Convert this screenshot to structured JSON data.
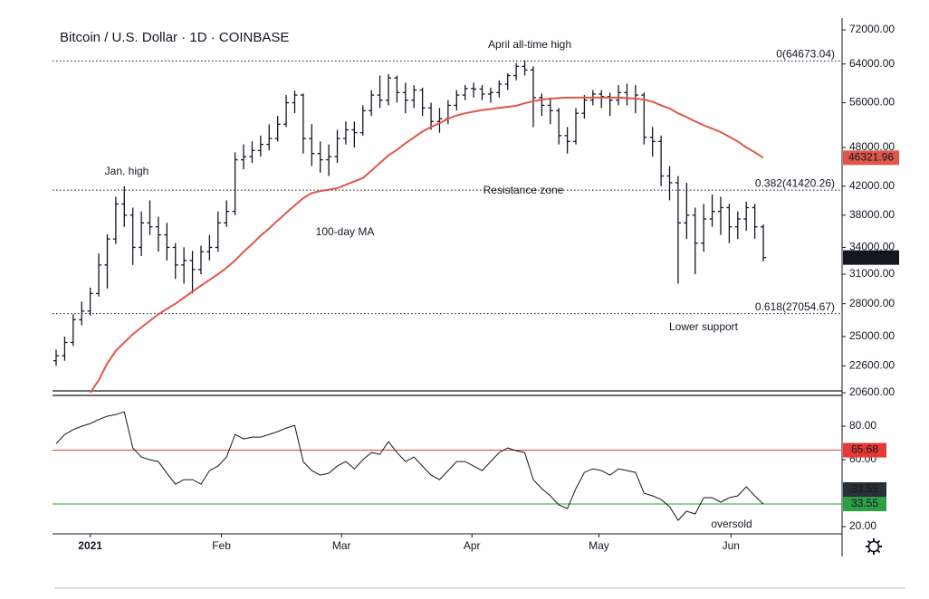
{
  "chart_data": [
    {
      "type": "ohlc",
      "title": "Bitcoin / U.S. Dollar · 1D · COINBASE",
      "color": "#131722",
      "open": [
        23000,
        23400,
        24500,
        26500,
        27300,
        29000,
        32000,
        35000,
        39500,
        38000,
        34000,
        37000,
        36500,
        35500,
        34000,
        32000,
        32500,
        31500,
        33500,
        34000,
        37000,
        38500,
        46000,
        46500,
        47500,
        48500,
        49500,
        52000,
        56000,
        57500,
        49500,
        47000,
        46000,
        46500,
        49500,
        51000,
        50500,
        54500,
        57500,
        56500,
        61000,
        58000,
        56500,
        58500,
        55000,
        52500,
        53000,
        55500,
        57500,
        58800,
        58700,
        57700,
        58000,
        59700,
        61500,
        63500,
        62700,
        57000,
        55500,
        54500,
        50000,
        49000,
        54000,
        56500,
        57700,
        57200,
        56500,
        58000,
        56800,
        57500,
        49700,
        49000,
        43500,
        42500,
        37000,
        38000,
        34500,
        37500,
        38500,
        39000,
        36500,
        37500,
        39000,
        36500
      ],
      "high": [
        23900,
        25000,
        27000,
        28200,
        29600,
        33300,
        35600,
        40500,
        42000,
        39000,
        38500,
        40000,
        37800,
        37000,
        34500,
        34000,
        33600,
        34200,
        35500,
        38500,
        40000,
        47200,
        48500,
        49000,
        50000,
        52000,
        53500,
        57500,
        58400,
        57800,
        52000,
        49000,
        48500,
        51000,
        52500,
        52500,
        55500,
        58500,
        61500,
        61800,
        61500,
        60000,
        59500,
        59000,
        56000,
        55000,
        56500,
        58500,
        59500,
        60000,
        59500,
        59000,
        60500,
        62000,
        64200,
        64800,
        63500,
        57800,
        57000,
        55000,
        51500,
        55000,
        57500,
        58500,
        58500,
        58000,
        59500,
        59800,
        59500,
        58000,
        51500,
        50000,
        45000,
        43500,
        42500,
        39000,
        39500,
        40800,
        40500,
        39500,
        38500,
        39800,
        39500,
        36800
      ],
      "low": [
        22600,
        23000,
        24200,
        26000,
        26900,
        28700,
        29500,
        34400,
        36500,
        32000,
        33000,
        35500,
        33500,
        32500,
        30500,
        30000,
        29000,
        31000,
        32500,
        33500,
        36500,
        38000,
        44500,
        45500,
        46500,
        47500,
        49000,
        51500,
        54000,
        47000,
        45000,
        44000,
        43500,
        45500,
        48500,
        48000,
        50000,
        53500,
        55000,
        55500,
        56000,
        54000,
        55000,
        53500,
        51000,
        50500,
        52000,
        54500,
        56500,
        57000,
        56500,
        56000,
        57000,
        58500,
        60500,
        61500,
        51500,
        53500,
        52000,
        48500,
        47000,
        48500,
        53000,
        55500,
        55000,
        53500,
        55500,
        55500,
        54000,
        48500,
        46500,
        42000,
        40000,
        30000,
        35000,
        31000,
        33500,
        36500,
        35500,
        34500,
        35000,
        36000,
        35000,
        32400
      ],
      "close": [
        23400,
        24500,
        26500,
        27300,
        29000,
        32000,
        35000,
        39500,
        38000,
        34000,
        37000,
        36500,
        35500,
        34000,
        32000,
        32500,
        31500,
        33500,
        34000,
        37000,
        38500,
        46000,
        46500,
        47500,
        48500,
        49500,
        52000,
        56000,
        57500,
        49500,
        47000,
        46000,
        46500,
        49500,
        51000,
        50500,
        54500,
        57500,
        56500,
        61000,
        58000,
        56500,
        58500,
        55000,
        52500,
        53000,
        55500,
        57500,
        58800,
        58700,
        57700,
        58000,
        59700,
        61500,
        63500,
        62700,
        57000,
        55500,
        54500,
        50000,
        49000,
        54000,
        56500,
        57700,
        57200,
        56500,
        58000,
        56800,
        57500,
        49700,
        49000,
        43500,
        42500,
        37000,
        38000,
        34500,
        37500,
        38500,
        39000,
        36500,
        37500,
        39000,
        36500,
        32831.21
      ],
      "ma": {
        "name": "100-day MA",
        "color": "#e0574a",
        "values": [
          null,
          null,
          null,
          null,
          20600,
          21500,
          22800,
          23800,
          24500,
          25200,
          25800,
          26400,
          27000,
          27500,
          28000,
          28600,
          29200,
          29800,
          30400,
          31000,
          31700,
          32500,
          33500,
          34400,
          35400,
          36300,
          37300,
          38300,
          39300,
          40300,
          41000,
          41300,
          41500,
          41700,
          42200,
          42700,
          43200,
          44300,
          45500,
          46700,
          47600,
          48700,
          49700,
          50700,
          51500,
          52200,
          53000,
          53600,
          54000,
          54300,
          54600,
          54800,
          55000,
          55200,
          55400,
          55900,
          56300,
          56600,
          56800,
          56900,
          57000,
          57000,
          57000,
          57000,
          57000,
          57000,
          57000,
          56900,
          56800,
          56600,
          56200,
          55500,
          54900,
          54000,
          53300,
          52500,
          51800,
          51200,
          50600,
          49800,
          49000,
          48000,
          47200,
          46321.96
        ]
      },
      "ylim": [
        20600,
        72000
      ],
      "log_scale": true,
      "yticks": [
        {
          "value": 72000,
          "label": "72000.00"
        },
        {
          "value": 64000,
          "label": "64000.00"
        },
        {
          "value": 56000,
          "label": "56000.00"
        },
        {
          "value": 48000,
          "label": "48000.00"
        },
        {
          "value": 42000,
          "label": "42000.00"
        },
        {
          "value": 38000,
          "label": "38000.00"
        },
        {
          "value": 34000,
          "label": "34000.00"
        },
        {
          "value": 31000,
          "label": "31000.00"
        },
        {
          "value": 28000,
          "label": "28000.00"
        },
        {
          "value": 25000,
          "label": "25000.00"
        },
        {
          "value": 22600,
          "label": "22600.00"
        },
        {
          "value": 20600,
          "label": "20600.00"
        }
      ],
      "xticks": [
        {
          "value": 4,
          "label": "2021"
        },
        {
          "value": 19.4,
          "label": "Feb"
        },
        {
          "value": 33.5,
          "label": "Mar"
        },
        {
          "value": 48.8,
          "label": "Apr"
        },
        {
          "value": 63.7,
          "label": "May"
        },
        {
          "value": 79.2,
          "label": "Jun"
        }
      ],
      "levels": [
        {
          "value": 64673.04,
          "label": "0(64673.04)"
        },
        {
          "value": 41420.26,
          "label": "0.382(41420.26)"
        },
        {
          "value": 27054.67,
          "label": "0.618(27054.67)"
        }
      ],
      "annotations": [
        "Jan. high",
        "April all-time high",
        "Resistance zone",
        "Lower support"
      ]
    },
    {
      "type": "line",
      "color": "#131722",
      "values": [
        69.7,
        75,
        78,
        80,
        81.6,
        84,
        86,
        87,
        88.6,
        67,
        61.6,
        60,
        58.9,
        52,
        45.4,
        48.1,
        48.1,
        45.4,
        53.5,
        56.2,
        61.6,
        75.1,
        72.4,
        73.5,
        73.5,
        75.1,
        76.8,
        78.9,
        80.5,
        58.9,
        53.5,
        50.8,
        51.9,
        56.2,
        58.9,
        54.6,
        60,
        64.3,
        63.2,
        70.8,
        64.3,
        58.9,
        61.6,
        56.2,
        50.8,
        48.1,
        53.5,
        58.9,
        58.9,
        56.2,
        53.5,
        58.9,
        64.3,
        67,
        65.4,
        64.3,
        48.1,
        42.7,
        38.4,
        33,
        30.8,
        42.7,
        52.4,
        54.6,
        53.5,
        50.8,
        54.6,
        53.5,
        52.4,
        40,
        38.4,
        36.2,
        31.9,
        23.8,
        29.2,
        27.6,
        37.3,
        37.3,
        34.6,
        37.3,
        38.4,
        43.8,
        38.4,
        33.55
      ],
      "ylim": [
        15.7,
        96.8
      ],
      "yticks": [
        {
          "value": 80,
          "label": "80.00"
        },
        {
          "value": 60,
          "label": "60.00"
        },
        {
          "value": 20,
          "label": "20.00"
        }
      ],
      "levels": [
        {
          "value": 65.68,
          "color": "#e53935"
        },
        {
          "value": 33.55,
          "color": "#2e9e44"
        }
      ],
      "annotations": [
        "oversold"
      ]
    }
  ]
}
